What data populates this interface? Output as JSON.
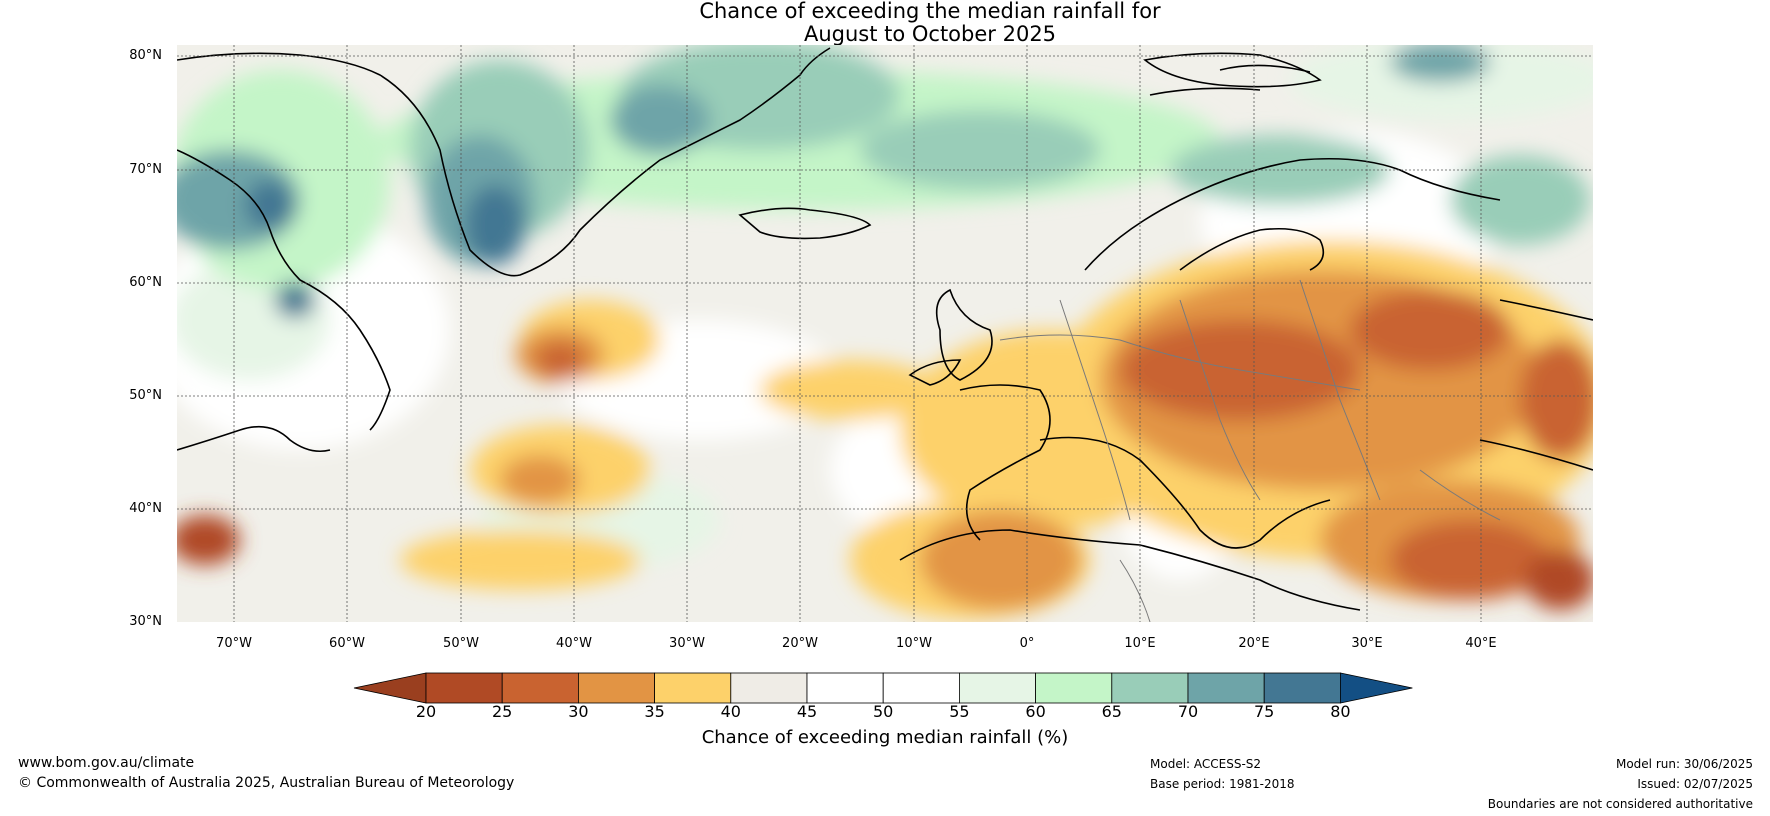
{
  "title": {
    "line1": "Chance of exceeding the median rainfall for",
    "line2": "August to October 2025"
  },
  "map": {
    "latitude_labels": [
      "80°N",
      "70°N",
      "60°N",
      "50°N",
      "40°N",
      "30°N"
    ],
    "longitude_labels": [
      "70°W",
      "60°W",
      "50°W",
      "40°W",
      "30°W",
      "20°W",
      "10°W",
      "0°",
      "10°E",
      "20°E",
      "30°E",
      "40°E"
    ],
    "lat_range": [
      30,
      81
    ],
    "lon_range": [
      -75,
      50
    ]
  },
  "colorbar": {
    "ticks": [
      "20",
      "25",
      "30",
      "35",
      "40",
      "45",
      "50",
      "55",
      "60",
      "65",
      "70",
      "75",
      "80"
    ],
    "colors": [
      "#9a3f1f",
      "#b04a25",
      "#c96330",
      "#e29444",
      "#fdd16a",
      "#efece6",
      "#ffffff",
      "#ffffff",
      "#e6f5e6",
      "#c4f5c8",
      "#99cdb8",
      "#6ea4a8",
      "#437793",
      "#134f84"
    ],
    "label": "Chance of exceeding median rainfall (%)"
  },
  "footer": {
    "website": "www.bom.gov.au/climate",
    "copyright": "© Commonwealth of Australia 2025, Australian Bureau of Meteorology",
    "model": "Model: ACCESS-S2",
    "base_period": "Base period: 1981-2018",
    "model_run": "Model run: 30/06/2025",
    "issued": "Issued: 02/07/2025",
    "disclaimer": "Boundaries are not considered authoritative"
  }
}
